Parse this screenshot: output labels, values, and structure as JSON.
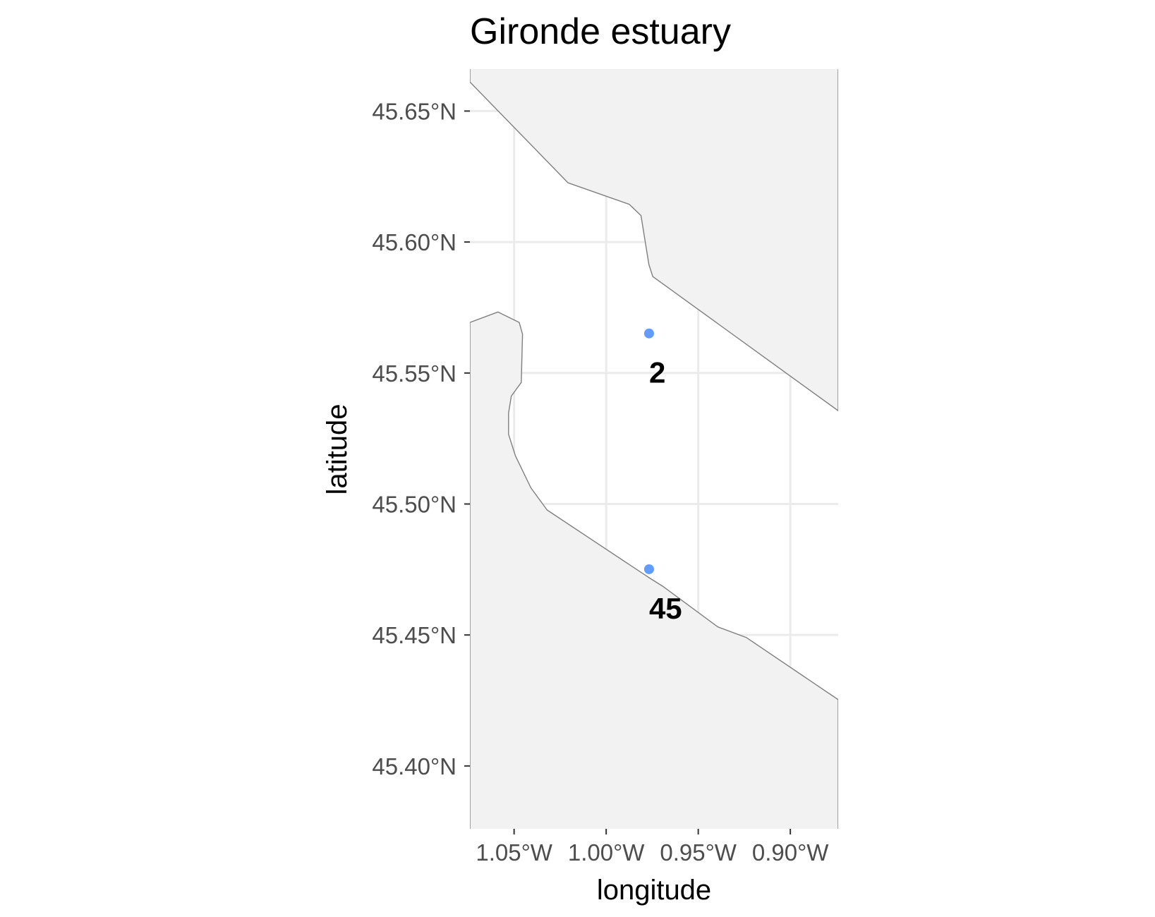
{
  "chart_data": {
    "type": "map",
    "title": "Gironde estuary",
    "xlabel": "longitude",
    "ylabel": "latitude",
    "xlim": [
      -1.074,
      -0.874
    ],
    "ylim": [
      45.376,
      45.666
    ],
    "x_ticks": [
      {
        "value": -1.05,
        "label": "1.05°W"
      },
      {
        "value": -1.0,
        "label": "1.00°W"
      },
      {
        "value": -0.95,
        "label": "0.95°W"
      },
      {
        "value": -0.9,
        "label": "0.90°W"
      }
    ],
    "y_ticks": [
      {
        "value": 45.4,
        "label": "45.40°N"
      },
      {
        "value": 45.45,
        "label": "45.45°N"
      },
      {
        "value": 45.5,
        "label": "45.50°N"
      },
      {
        "value": 45.55,
        "label": "45.55°N"
      },
      {
        "value": 45.6,
        "label": "45.60°N"
      },
      {
        "value": 45.65,
        "label": "45.65°N"
      }
    ],
    "grid": true,
    "colors": {
      "land": "#f2f2f2",
      "water": "#ffffff",
      "coastline": "#7f7f7f",
      "gridline": "#ebebeb",
      "point": "#619cff"
    },
    "land_north": [
      [
        -1.074,
        45.6767
      ],
      [
        -1.074,
        45.6611
      ],
      [
        -1.0207,
        45.6226
      ],
      [
        -0.9875,
        45.6144
      ],
      [
        -0.9811,
        45.6101
      ],
      [
        -0.9768,
        45.5914
      ],
      [
        -0.9747,
        45.5868
      ],
      [
        -0.874,
        45.5356
      ],
      [
        -0.874,
        45.6767
      ]
    ],
    "land_south": [
      [
        -1.074,
        45.3548
      ],
      [
        -1.074,
        45.5693
      ],
      [
        -1.0588,
        45.5733
      ],
      [
        -1.0472,
        45.5693
      ],
      [
        -1.0454,
        45.5648
      ],
      [
        -1.0461,
        45.5464
      ],
      [
        -1.0515,
        45.5412
      ],
      [
        -1.053,
        45.5347
      ],
      [
        -1.053,
        45.5266
      ],
      [
        -1.0493,
        45.5184
      ],
      [
        -1.0409,
        45.5062
      ],
      [
        -1.0321,
        45.4977
      ],
      [
        -0.9772,
        45.4721
      ],
      [
        -0.9693,
        45.4686
      ],
      [
        -0.9394,
        45.4531
      ],
      [
        -0.9238,
        45.449
      ],
      [
        -0.874,
        45.4253
      ],
      [
        -0.874,
        45.3548
      ]
    ],
    "points": [
      {
        "lon": -0.9767,
        "lat": 45.5651,
        "label": "2"
      },
      {
        "lon": -0.9767,
        "lat": 45.4751,
        "label": "45"
      }
    ]
  }
}
